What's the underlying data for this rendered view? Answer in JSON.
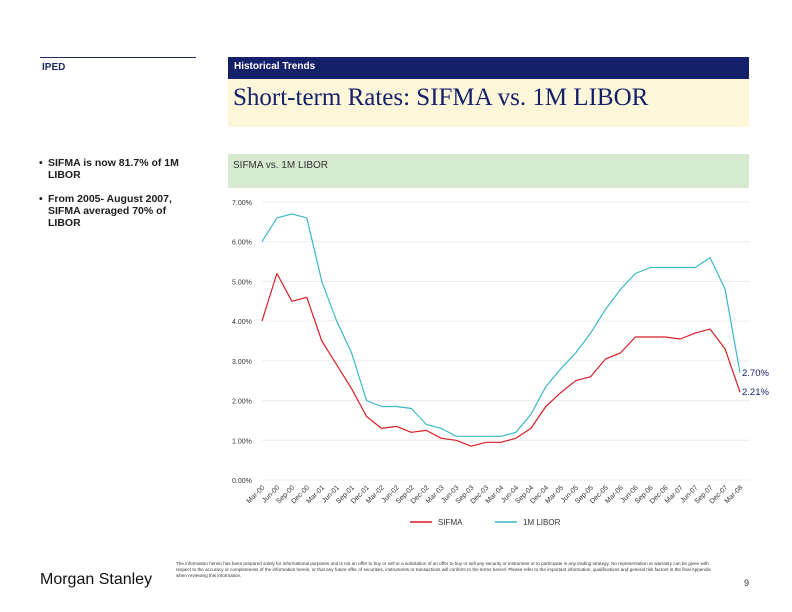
{
  "section_label": "IPED",
  "header": {
    "bar_label": "Historical Trends",
    "title": "Short-term Rates: SIFMA vs. 1M LIBOR"
  },
  "bullets": [
    {
      "line1": "SIFMA is now 81.7% of 1M",
      "line2": "LIBOR"
    },
    {
      "line1": "From 2005- August 2007,",
      "line2": "SIFMA averaged 70% of",
      "line3": "LIBOR"
    }
  ],
  "chart_header": "SIFMA vs. 1M LIBOR",
  "footer": {
    "logo": "Morgan Stanley",
    "disclaimer": "The information herein has been prepared solely for informational purposes and is not an offer to buy or sell or a solicitation of an offer to buy or sell any security or instrument or to participate in any trading strategy. No representation or warranty can be given with respect to the accuracy or completeness of the information herein, or that any future offer of securities, instruments or transactions will conform to the terms hereof. Please refer to the important information, qualifications and general risk factors in the final Appendix when reviewing this information.",
    "page_number": "9"
  },
  "chart_data": {
    "type": "line",
    "ylim": [
      0,
      7
    ],
    "y_ticks": [
      "0.00%",
      "1.00%",
      "2.00%",
      "3.00%",
      "4.00%",
      "5.00%",
      "6.00%",
      "7.00%"
    ],
    "categories": [
      "Mar-00",
      "Jun-00",
      "Sep-00",
      "Dec-00",
      "Mar-01",
      "Jun-01",
      "Sep-01",
      "Dec-01",
      "Mar-02",
      "Jun-02",
      "Sep-02",
      "Dec-02",
      "Mar-03",
      "Jun-03",
      "Sep-03",
      "Dec-03",
      "Mar-04",
      "Jun-04",
      "Sep-04",
      "Dec-04",
      "Mar-05",
      "Jun-05",
      "Sep-05",
      "Dec-05",
      "Mar-06",
      "Jun-06",
      "Sep-06",
      "Dec-06",
      "Mar-07",
      "Jun-07",
      "Sep-07",
      "Dec-07",
      "Mar-08"
    ],
    "series": [
      {
        "name": "SIFMA",
        "color": "#d61f26",
        "values": [
          4.0,
          5.2,
          4.5,
          4.6,
          3.5,
          2.9,
          2.3,
          1.6,
          1.3,
          1.35,
          1.2,
          1.25,
          1.05,
          1.0,
          0.85,
          0.95,
          0.95,
          1.05,
          1.3,
          1.85,
          2.2,
          2.5,
          2.6,
          3.05,
          3.2,
          3.6,
          3.6,
          3.6,
          3.55,
          3.7,
          3.8,
          3.3,
          2.21
        ]
      },
      {
        "name": "1M LIBOR",
        "color": "#3bb8c8",
        "values": [
          6.0,
          6.6,
          6.7,
          6.6,
          5.0,
          4.0,
          3.2,
          2.0,
          1.85,
          1.85,
          1.8,
          1.4,
          1.3,
          1.1,
          1.1,
          1.1,
          1.1,
          1.2,
          1.65,
          2.35,
          2.8,
          3.2,
          3.7,
          4.3,
          4.8,
          5.2,
          5.35,
          5.35,
          5.35,
          5.35,
          5.6,
          4.8,
          2.7
        ]
      }
    ],
    "annotations": [
      "2.70%",
      "2.21%"
    ]
  }
}
